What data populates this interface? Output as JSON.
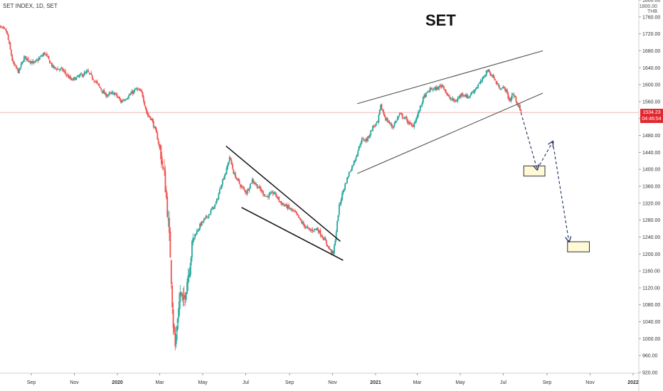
{
  "header": {
    "symbol_line": "SET INDEX, 1D, SET"
  },
  "currency_label": "THB",
  "top_value": "1800.00",
  "price_badge": {
    "price": "1534.23",
    "countdown": "04:46:54"
  },
  "colors": {
    "up": "#26a69a",
    "down": "#ef5350",
    "price_line": "#f7b6b6",
    "badge": "#e3272e",
    "trendline": "#111111",
    "channel": "#555555",
    "arrow": "#2f3d6b",
    "target_fill": "#fff9d6",
    "target_stroke": "#333333"
  },
  "chart_data": {
    "type": "candlestick",
    "title": "SET",
    "ylim": [
      910,
      1810
    ],
    "yticks": [
      920,
      960,
      1000,
      1040,
      1080,
      1120,
      1160,
      1200,
      1240,
      1280,
      1320,
      1360,
      1400,
      1440,
      1480,
      1520,
      1560,
      1600,
      1640,
      1680,
      1720,
      1760,
      1800
    ],
    "xticks": [
      {
        "label": "Sep",
        "date": "2019-09-01"
      },
      {
        "label": "Nov",
        "date": "2019-11-01"
      },
      {
        "label": "2020",
        "date": "2020-01-01"
      },
      {
        "label": "Mar",
        "date": "2020-03-01"
      },
      {
        "label": "May",
        "date": "2020-05-01"
      },
      {
        "label": "Jul",
        "date": "2020-07-01"
      },
      {
        "label": "Sep",
        "date": "2020-09-01"
      },
      {
        "label": "Nov",
        "date": "2020-11-01"
      },
      {
        "label": "2021",
        "date": "2021-01-01"
      },
      {
        "label": "Mar",
        "date": "2021-03-01"
      },
      {
        "label": "May",
        "date": "2021-05-01"
      },
      {
        "label": "Jul",
        "date": "2021-07-01"
      },
      {
        "label": "Sep",
        "date": "2021-09-01"
      },
      {
        "label": "Nov",
        "date": "2021-11-01"
      },
      {
        "label": "2022",
        "date": "2022-01-01"
      }
    ],
    "price_anchors": [
      [
        "2019-07-15",
        1740
      ],
      [
        "2019-07-28",
        1725
      ],
      [
        "2019-08-06",
        1650
      ],
      [
        "2019-08-14",
        1630
      ],
      [
        "2019-08-22",
        1665
      ],
      [
        "2019-09-05",
        1650
      ],
      [
        "2019-09-20",
        1675
      ],
      [
        "2019-10-02",
        1640
      ],
      [
        "2019-10-15",
        1635
      ],
      [
        "2019-10-28",
        1610
      ],
      [
        "2019-11-08",
        1620
      ],
      [
        "2019-11-20",
        1630
      ],
      [
        "2019-12-02",
        1605
      ],
      [
        "2019-12-15",
        1575
      ],
      [
        "2019-12-28",
        1580
      ],
      [
        "2020-01-06",
        1560
      ],
      [
        "2020-01-18",
        1575
      ],
      [
        "2020-01-28",
        1590
      ],
      [
        "2020-02-05",
        1580
      ],
      [
        "2020-02-12",
        1530
      ],
      [
        "2020-02-18",
        1520
      ],
      [
        "2020-02-26",
        1480
      ],
      [
        "2020-03-02",
        1440
      ],
      [
        "2020-03-08",
        1380
      ],
      [
        "2020-03-12",
        1300
      ],
      [
        "2020-03-16",
        1200
      ],
      [
        "2020-03-18",
        1120
      ],
      [
        "2020-03-20",
        1040
      ],
      [
        "2020-03-23",
        980
      ],
      [
        "2020-03-26",
        1040
      ],
      [
        "2020-03-30",
        1110
      ],
      [
        "2020-04-03",
        1080
      ],
      [
        "2020-04-10",
        1150
      ],
      [
        "2020-04-18",
        1240
      ],
      [
        "2020-04-28",
        1270
      ],
      [
        "2020-05-08",
        1290
      ],
      [
        "2020-05-20",
        1320
      ],
      [
        "2020-05-28",
        1370
      ],
      [
        "2020-06-04",
        1400
      ],
      [
        "2020-06-08",
        1430
      ],
      [
        "2020-06-14",
        1390
      ],
      [
        "2020-06-24",
        1360
      ],
      [
        "2020-07-02",
        1345
      ],
      [
        "2020-07-10",
        1375
      ],
      [
        "2020-07-20",
        1355
      ],
      [
        "2020-07-30",
        1335
      ],
      [
        "2020-08-10",
        1345
      ],
      [
        "2020-08-20",
        1320
      ],
      [
        "2020-08-30",
        1310
      ],
      [
        "2020-09-10",
        1295
      ],
      [
        "2020-09-20",
        1270
      ],
      [
        "2020-09-30",
        1255
      ],
      [
        "2020-10-10",
        1260
      ],
      [
        "2020-10-20",
        1235
      ],
      [
        "2020-10-28",
        1210
      ],
      [
        "2020-11-02",
        1200
      ],
      [
        "2020-11-06",
        1250
      ],
      [
        "2020-11-10",
        1310
      ],
      [
        "2020-11-16",
        1350
      ],
      [
        "2020-11-24",
        1390
      ],
      [
        "2020-12-02",
        1420
      ],
      [
        "2020-12-12",
        1470
      ],
      [
        "2020-12-20",
        1470
      ],
      [
        "2020-12-28",
        1500
      ],
      [
        "2021-01-04",
        1510
      ],
      [
        "2021-01-08",
        1550
      ],
      [
        "2021-01-15",
        1520
      ],
      [
        "2021-01-25",
        1500
      ],
      [
        "2021-02-04",
        1530
      ],
      [
        "2021-02-12",
        1520
      ],
      [
        "2021-02-22",
        1500
      ],
      [
        "2021-03-02",
        1530
      ],
      [
        "2021-03-10",
        1570
      ],
      [
        "2021-03-20",
        1590
      ],
      [
        "2021-03-28",
        1590
      ],
      [
        "2021-04-06",
        1600
      ],
      [
        "2021-04-14",
        1570
      ],
      [
        "2021-04-24",
        1560
      ],
      [
        "2021-05-04",
        1580
      ],
      [
        "2021-05-12",
        1570
      ],
      [
        "2021-05-22",
        1590
      ],
      [
        "2021-06-01",
        1610
      ],
      [
        "2021-06-08",
        1635
      ],
      [
        "2021-06-16",
        1620
      ],
      [
        "2021-06-24",
        1595
      ],
      [
        "2021-07-04",
        1590
      ],
      [
        "2021-07-10",
        1560
      ],
      [
        "2021-07-14",
        1580
      ],
      [
        "2021-07-20",
        1560
      ],
      [
        "2021-07-26",
        1534
      ]
    ],
    "current_price": 1534.23,
    "trendlines": [
      {
        "kind": "falling-wedge-upper",
        "from": [
          "2020-06-03",
          1455
        ],
        "to": [
          "2020-11-12",
          1230
        ]
      },
      {
        "kind": "falling-wedge-lower",
        "from": [
          "2020-06-25",
          1310
        ],
        "to": [
          "2020-11-16",
          1185
        ]
      },
      {
        "kind": "channel-upper",
        "from": [
          "2020-12-06",
          1555
        ],
        "to": [
          "2021-08-26",
          1680
        ]
      },
      {
        "kind": "channel-lower",
        "from": [
          "2020-12-06",
          1390
        ],
        "to": [
          "2021-08-26",
          1580
        ]
      }
    ],
    "projection_path": [
      [
        "2021-07-26",
        1534
      ],
      [
        "2021-08-18",
        1400
      ],
      [
        "2021-09-09",
        1465
      ],
      [
        "2021-10-02",
        1230
      ]
    ],
    "target_zones": [
      {
        "from": "2021-07-30",
        "to": "2021-08-29",
        "low": 1384,
        "high": 1408
      },
      {
        "from": "2021-09-30",
        "to": "2021-10-31",
        "low": 1205,
        "high": 1229
      }
    ]
  }
}
